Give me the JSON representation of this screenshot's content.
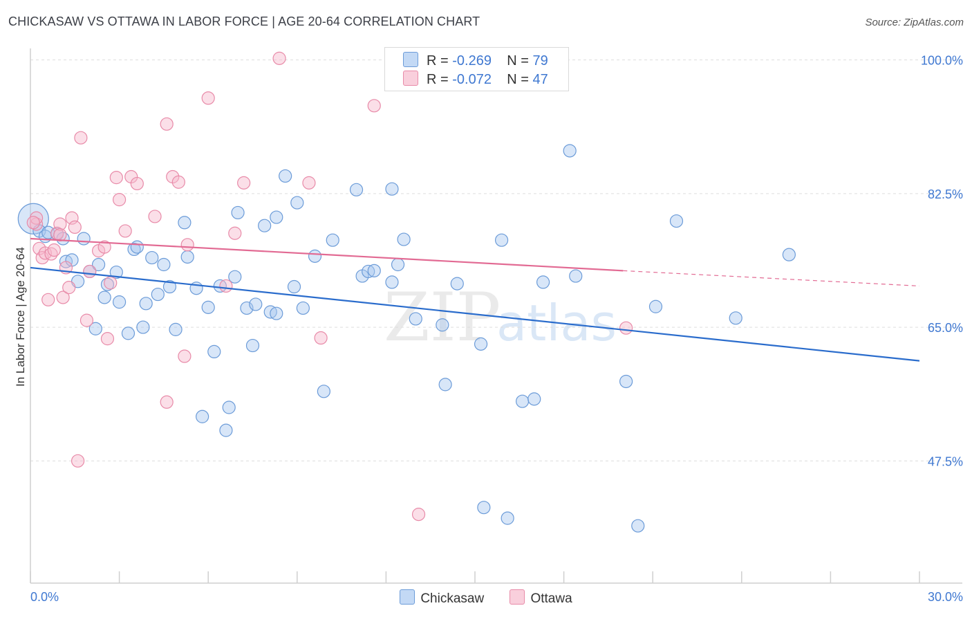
{
  "title": "CHICKASAW VS OTTAWA IN LABOR FORCE | AGE 20-64 CORRELATION CHART",
  "source": "Source: ZipAtlas.com",
  "watermark": {
    "zip": "ZIP",
    "atlas": "atlas"
  },
  "legend": {
    "r_label": "R = ",
    "n_label": "N = ",
    "chickasaw": {
      "r": "-0.269",
      "n": "79"
    },
    "ottawa": {
      "r": "-0.072",
      "n": "47"
    }
  },
  "colors": {
    "chickasaw_fill": "#a8c8f0",
    "chickasaw_stroke": "#6b9bd8",
    "chickasaw_line": "#2a6ccc",
    "ottawa_fill": "#f6b8cb",
    "ottawa_stroke": "#e88aa8",
    "ottawa_line": "#e26a93",
    "axis_text": "#3f78d1",
    "grid": "#dddddd"
  },
  "chart_data": {
    "type": "scatter",
    "title": "CHICKASAW VS OTTAWA IN LABOR FORCE | AGE 20-64 CORRELATION CHART",
    "xlabel": "",
    "ylabel": "In Labor Force | Age 20-64",
    "xlim": [
      0,
      30
    ],
    "ylim": [
      31.5,
      101.5
    ],
    "x_tick_labels": [
      "0.0%",
      "30.0%"
    ],
    "y_ticks": [
      47.5,
      65.0,
      82.5,
      100.0
    ],
    "y_tick_labels": [
      "47.5%",
      "65.0%",
      "82.5%",
      "100.0%"
    ],
    "grid": "horizontal dashed",
    "legend_position": "bottom",
    "series": [
      {
        "name": "Chickasaw",
        "trend": {
          "x": [
            0,
            30
          ],
          "y": [
            72.8,
            60.6
          ]
        },
        "points": [
          [
            0.1,
            79.2
          ],
          [
            0.3,
            77.6
          ],
          [
            0.5,
            76.9
          ],
          [
            0.6,
            77.4
          ],
          [
            0.9,
            77.2
          ],
          [
            1.1,
            76.6
          ],
          [
            1.2,
            73.6
          ],
          [
            1.4,
            73.8
          ],
          [
            1.6,
            71.0
          ],
          [
            1.8,
            76.6
          ],
          [
            2.0,
            72.3
          ],
          [
            2.2,
            64.8
          ],
          [
            2.3,
            73.2
          ],
          [
            2.5,
            68.9
          ],
          [
            2.6,
            70.6
          ],
          [
            2.9,
            72.2
          ],
          [
            3.0,
            68.3
          ],
          [
            3.3,
            64.2
          ],
          [
            3.5,
            75.2
          ],
          [
            3.6,
            75.5
          ],
          [
            3.8,
            65.0
          ],
          [
            3.9,
            68.1
          ],
          [
            4.1,
            74.1
          ],
          [
            4.3,
            69.3
          ],
          [
            4.5,
            73.2
          ],
          [
            4.7,
            70.3
          ],
          [
            4.9,
            64.7
          ],
          [
            5.2,
            78.7
          ],
          [
            5.3,
            74.2
          ],
          [
            5.6,
            70.1
          ],
          [
            5.8,
            53.3
          ],
          [
            6.0,
            67.6
          ],
          [
            6.2,
            61.8
          ],
          [
            6.4,
            70.4
          ],
          [
            6.6,
            51.5
          ],
          [
            6.7,
            54.5
          ],
          [
            6.9,
            71.6
          ],
          [
            7.0,
            80.0
          ],
          [
            7.3,
            67.5
          ],
          [
            7.5,
            62.6
          ],
          [
            7.6,
            68.0
          ],
          [
            7.9,
            78.3
          ],
          [
            8.1,
            67.0
          ],
          [
            8.3,
            66.8
          ],
          [
            8.3,
            79.4
          ],
          [
            8.6,
            84.8
          ],
          [
            8.9,
            70.3
          ],
          [
            9.0,
            81.3
          ],
          [
            9.2,
            67.5
          ],
          [
            9.6,
            74.3
          ],
          [
            9.9,
            56.6
          ],
          [
            10.2,
            76.4
          ],
          [
            11.0,
            83.0
          ],
          [
            11.2,
            71.7
          ],
          [
            11.4,
            72.3
          ],
          [
            11.6,
            72.4
          ],
          [
            12.2,
            70.9
          ],
          [
            12.2,
            83.1
          ],
          [
            12.4,
            73.2
          ],
          [
            12.6,
            76.5
          ],
          [
            13.0,
            66.1
          ],
          [
            14.0,
            57.5
          ],
          [
            13.9,
            65.3
          ],
          [
            14.4,
            70.7
          ],
          [
            15.2,
            62.8
          ],
          [
            15.3,
            41.4
          ],
          [
            15.9,
            76.4
          ],
          [
            16.1,
            40.0
          ],
          [
            16.6,
            55.3
          ],
          [
            17.0,
            55.6
          ],
          [
            17.3,
            70.9
          ],
          [
            18.2,
            88.1
          ],
          [
            18.4,
            71.7
          ],
          [
            20.1,
            57.9
          ],
          [
            20.5,
            39.0
          ],
          [
            21.1,
            67.7
          ],
          [
            21.8,
            78.9
          ],
          [
            23.8,
            66.2
          ],
          [
            25.6,
            74.5
          ]
        ]
      },
      {
        "name": "Ottawa",
        "trend_solid": {
          "x": [
            0,
            20.0
          ],
          "y": [
            76.6,
            72.4
          ]
        },
        "trend_dashed": {
          "x": [
            20.0,
            30
          ],
          "y": [
            72.4,
            70.4
          ]
        },
        "points": [
          [
            0.2,
            78.5
          ],
          [
            0.3,
            75.3
          ],
          [
            0.4,
            74.1
          ],
          [
            0.5,
            74.7
          ],
          [
            0.6,
            68.6
          ],
          [
            0.7,
            74.6
          ],
          [
            0.8,
            75.1
          ],
          [
            0.9,
            77.3
          ],
          [
            1.0,
            78.5
          ],
          [
            1.0,
            77.1
          ],
          [
            1.1,
            68.9
          ],
          [
            1.2,
            72.8
          ],
          [
            1.3,
            70.2
          ],
          [
            1.4,
            79.3
          ],
          [
            1.5,
            78.1
          ],
          [
            1.6,
            47.5
          ],
          [
            1.7,
            89.8
          ],
          [
            1.9,
            65.9
          ],
          [
            2.0,
            72.3
          ],
          [
            2.3,
            75.0
          ],
          [
            2.5,
            75.5
          ],
          [
            2.6,
            63.5
          ],
          [
            2.7,
            70.8
          ],
          [
            2.9,
            84.6
          ],
          [
            3.0,
            81.7
          ],
          [
            3.2,
            77.6
          ],
          [
            3.4,
            84.7
          ],
          [
            3.6,
            83.8
          ],
          [
            4.2,
            79.5
          ],
          [
            4.6,
            55.2
          ],
          [
            4.6,
            91.6
          ],
          [
            4.8,
            84.7
          ],
          [
            5.0,
            84.0
          ],
          [
            5.2,
            61.2
          ],
          [
            5.3,
            75.8
          ],
          [
            6.0,
            95.0
          ],
          [
            6.6,
            70.4
          ],
          [
            6.9,
            77.3
          ],
          [
            7.2,
            83.9
          ],
          [
            8.4,
            100.2
          ],
          [
            9.4,
            83.9
          ],
          [
            9.8,
            63.6
          ],
          [
            11.6,
            94.0
          ],
          [
            13.1,
            40.5
          ],
          [
            20.1,
            64.9
          ],
          [
            0.2,
            79.3
          ],
          [
            0.1,
            78.7
          ]
        ]
      }
    ]
  }
}
